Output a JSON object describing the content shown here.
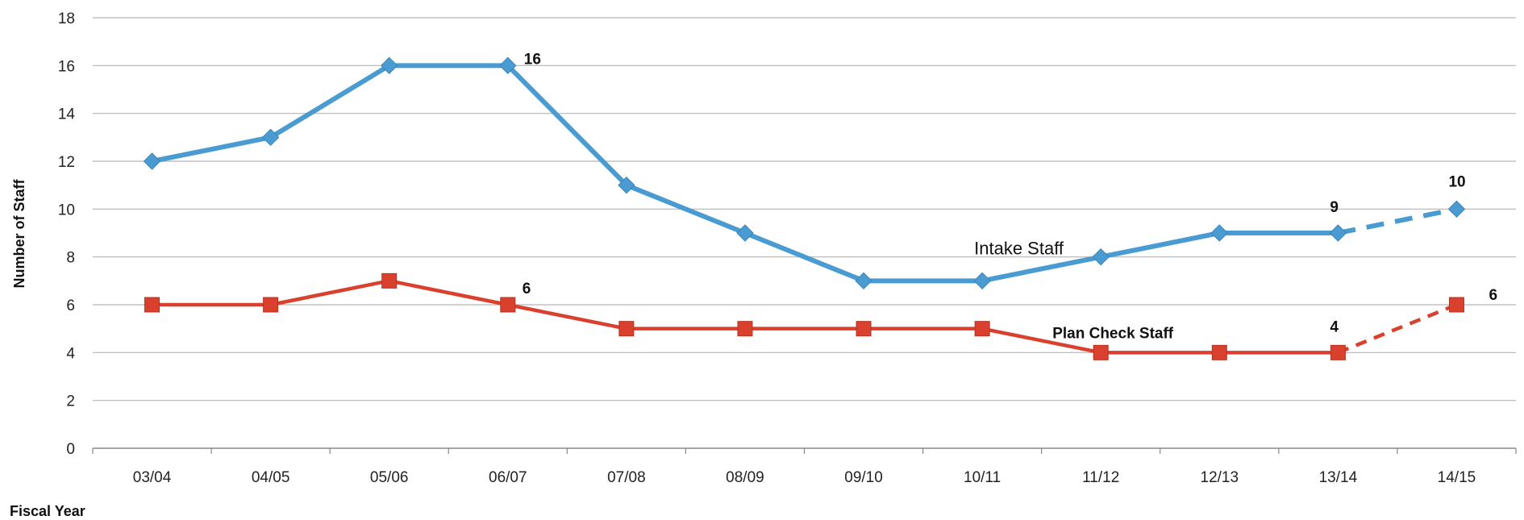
{
  "chart_data": {
    "type": "line",
    "title": "",
    "xlabel": "Fiscal Year",
    "ylabel": "Number of Staff",
    "ylim": [
      0,
      18
    ],
    "yticks": [
      "0",
      "2",
      "4",
      "6",
      "8",
      "10",
      "12",
      "14",
      "16",
      "18"
    ],
    "grid": true,
    "categories": [
      "03/04",
      "04/05",
      "05/06",
      "06/07",
      "07/08",
      "08/09",
      "09/10",
      "10/11",
      "11/12",
      "12/13",
      "13/14",
      "14/15"
    ],
    "series": [
      {
        "name": "Intake Staff",
        "color": "#4a9bd1",
        "marker": "diamond",
        "values": [
          12,
          13,
          16,
          16,
          11,
          9,
          7,
          7,
          8,
          9,
          9,
          10
        ],
        "projected_from_index": 10
      },
      {
        "name": "Plan Check Staff",
        "color": "#d9412e",
        "marker": "square",
        "values": [
          6,
          6,
          7,
          6,
          5,
          5,
          5,
          5,
          4,
          4,
          4,
          6
        ],
        "projected_from_index": 10
      }
    ],
    "data_labels": [
      {
        "series": 0,
        "index": 3,
        "text": "16"
      },
      {
        "series": 0,
        "index": 10,
        "text": "9"
      },
      {
        "series": 0,
        "index": 11,
        "text": "10"
      },
      {
        "series": 1,
        "index": 3,
        "text": "6"
      },
      {
        "series": 1,
        "index": 10,
        "text": "4"
      },
      {
        "series": 1,
        "index": 11,
        "text": "6"
      }
    ]
  }
}
